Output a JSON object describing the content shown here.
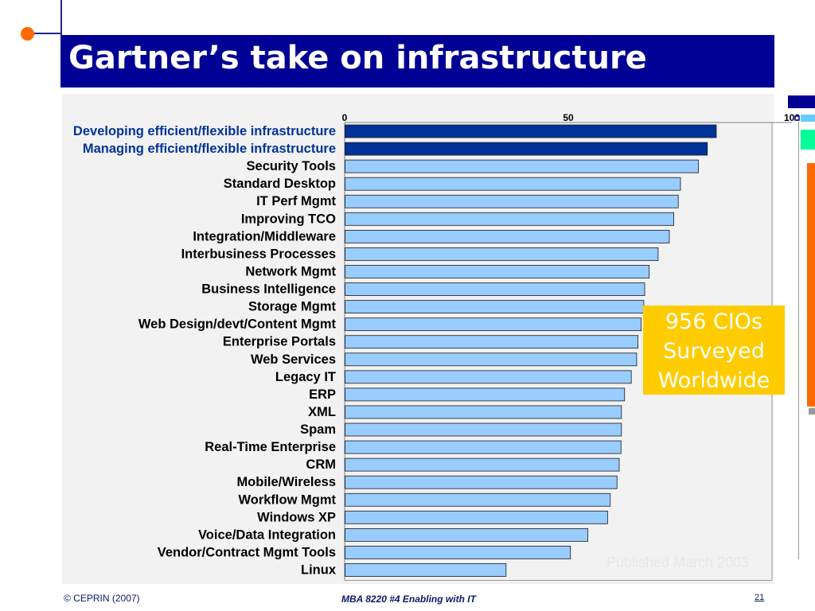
{
  "slide": {
    "title": "Gartner’s take on infrastructure",
    "callout": [
      "956 CIOs",
      "Surveyed",
      "Worldwide"
    ],
    "published": "Published March 2003",
    "footer_left": "© CEPRIN (2007)",
    "footer_center": "MBA 8220 #4 Enabling with IT",
    "page_number": "21"
  },
  "colors": {
    "title_bar": "#000094",
    "highlight_bar": "#003399",
    "normal_bar": "#99ccff",
    "highlight_label": "#003399",
    "accent_orange": "#ff6a00",
    "callout_bg": "#ffcc00"
  },
  "chart_data": {
    "type": "bar",
    "orientation": "horizontal",
    "categories": [
      "Developing efficient/flexible infrastructure",
      "Managing efficient/flexible infrastructure",
      "Security Tools",
      "Standard Desktop",
      "IT Perf Mgmt",
      "Improving TCO",
      "Integration/Middleware",
      "Interbusiness Processes",
      "Network Mgmt",
      "Business Intelligence",
      "Storage Mgmt",
      "Web Design/devt/Content Mgmt",
      "Enterprise Portals",
      "Web Services",
      "Legacy IT",
      "ERP",
      "XML",
      "Spam",
      "Real-Time Enterprise",
      "CRM",
      "Mobile/Wireless",
      "Workflow Mgmt",
      "Windows XP",
      "Voice/Data Integration",
      "Vendor/Contract Mgmt Tools",
      "Linux"
    ],
    "values": [
      83,
      81,
      79,
      75,
      74.5,
      73.5,
      72.5,
      70,
      68,
      67,
      66.8,
      66.2,
      65.5,
      65.2,
      64,
      62.5,
      61.8,
      61.8,
      61.7,
      61.3,
      60.8,
      59.3,
      58.7,
      54.3,
      50.4,
      36
    ],
    "highlighted": [
      0,
      1
    ],
    "xlim": [
      0,
      100
    ],
    "xticks": [
      0,
      50,
      100
    ],
    "xlabel": "",
    "ylabel": "",
    "title": ""
  }
}
